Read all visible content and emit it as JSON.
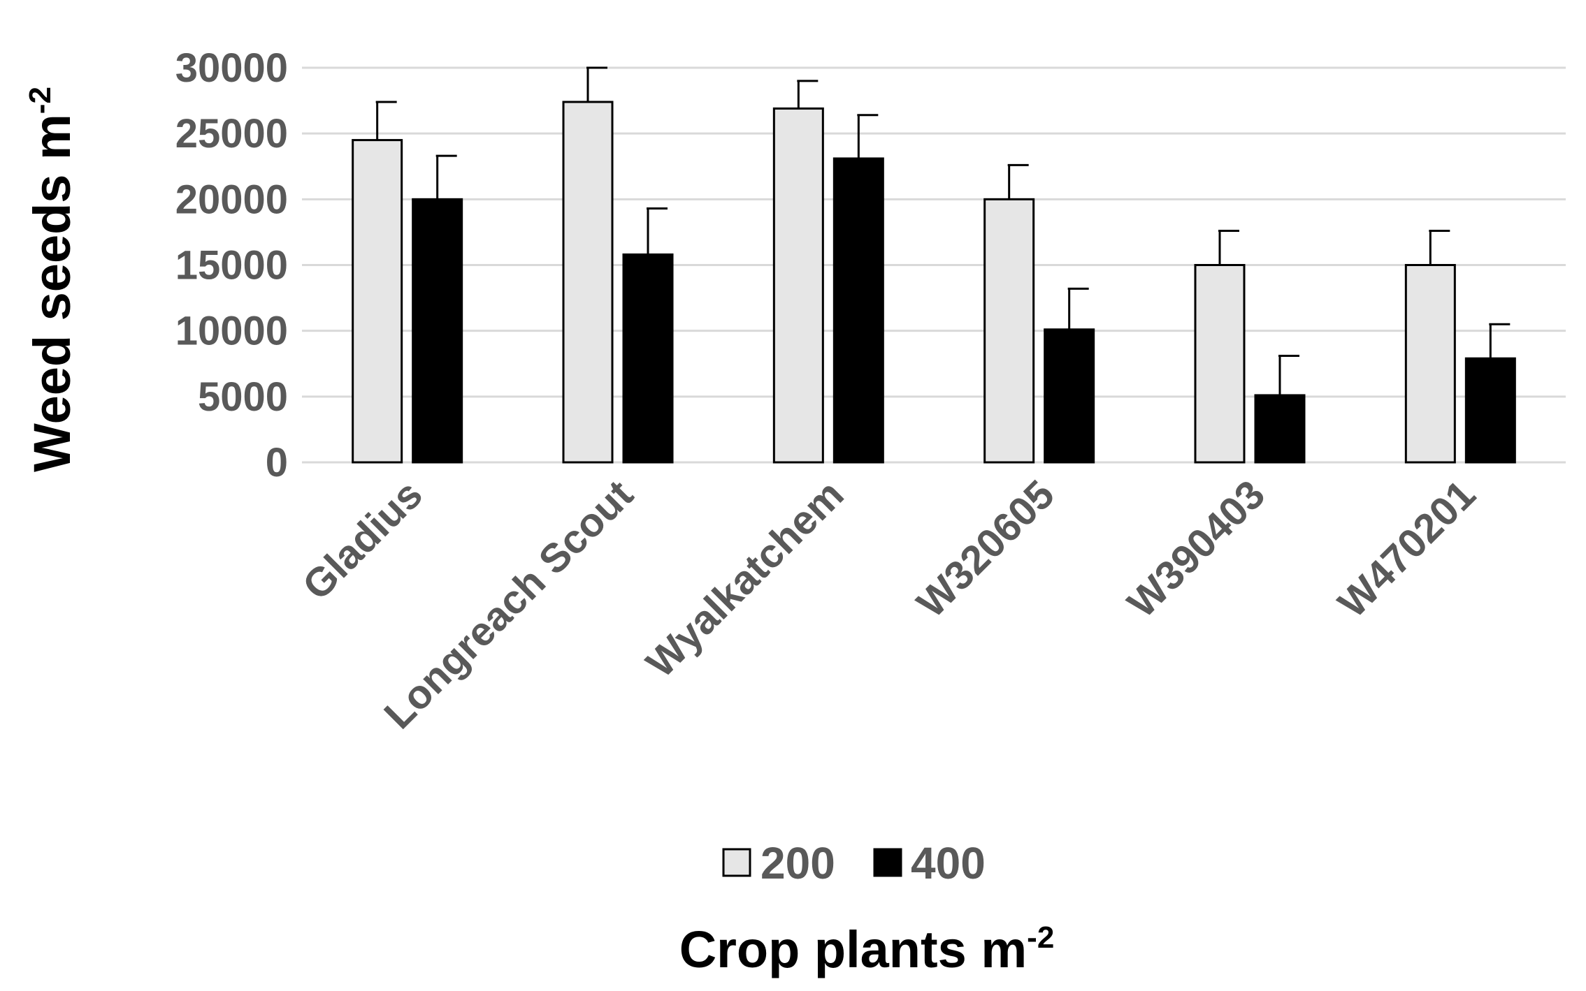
{
  "chart_data": {
    "type": "bar",
    "categories": [
      "Gladius",
      "Longreach Scout",
      "Wyalkatchem",
      "W320605",
      "W390403",
      "W470201"
    ],
    "series": [
      {
        "name": "200",
        "color": "#e6e6e6",
        "values": [
          24500,
          27400,
          26900,
          20000,
          15000,
          15000
        ],
        "errors": [
          2900,
          2600,
          2100,
          2600,
          2600,
          2600
        ]
      },
      {
        "name": "400",
        "color": "#000000",
        "values": [
          20000,
          15800,
          23100,
          10100,
          5100,
          7900
        ],
        "errors": [
          3300,
          3500,
          3300,
          3100,
          3000,
          2600
        ]
      }
    ],
    "yticks": [
      "0",
      "5000",
      "10000",
      "15000",
      "20000",
      "25000",
      "30000"
    ],
    "ylim": [
      0,
      30000
    ],
    "ylabel": "Weed seeds m",
    "ylabel_sup": "-2",
    "xlabel": "Crop plants m",
    "xlabel_sup": "-2",
    "grid": true,
    "legend_position": "bottom"
  }
}
